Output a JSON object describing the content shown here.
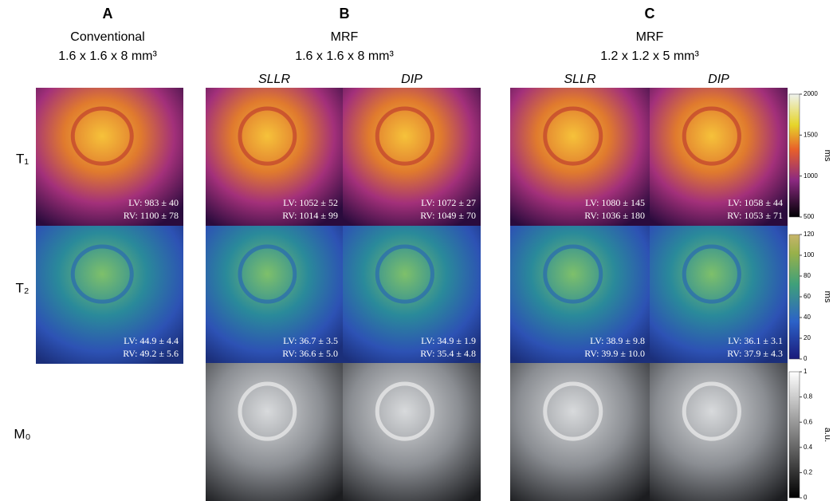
{
  "columns": [
    {
      "letter": "A",
      "title": "Conventional",
      "resolution": "1.6 x 1.6 x 8 mm³",
      "methods": [
        {
          "T1": {
            "lv": "LV: 983 ± 40",
            "rv": "RV: 1100 ± 78"
          },
          "T2": {
            "lv": "LV: 44.9 ± 4.4",
            "rv": "RV: 49.2 ± 5.6"
          }
        }
      ]
    },
    {
      "letter": "B",
      "title": "MRF",
      "resolution": "1.6 x 1.6 x 8 mm³",
      "methods": [
        {
          "name": "SLLR",
          "T1": {
            "lv": "LV: 1052 ± 52",
            "rv": "RV: 1014 ± 99"
          },
          "T2": {
            "lv": "LV: 36.7 ± 3.5",
            "rv": "RV: 36.6 ± 5.0"
          }
        },
        {
          "name": "DIP",
          "T1": {
            "lv": "LV: 1072 ± 27",
            "rv": "RV: 1049 ± 70"
          },
          "T2": {
            "lv": "LV: 34.9 ± 1.9",
            "rv": "RV: 35.4 ± 4.8"
          }
        }
      ]
    },
    {
      "letter": "C",
      "title": "MRF",
      "resolution": "1.2 x 1.2 x 5 mm³",
      "methods": [
        {
          "name": "SLLR",
          "T1": {
            "lv": "LV: 1080 ± 145",
            "rv": "RV: 1036 ± 180"
          },
          "T2": {
            "lv": "LV: 38.9 ± 9.8",
            "rv": "RV: 39.9 ± 10.0"
          }
        },
        {
          "name": "DIP",
          "T1": {
            "lv": "LV: 1058 ± 44",
            "rv": "RV: 1053 ± 71"
          },
          "T2": {
            "lv": "LV: 36.1 ± 3.1",
            "rv": "RV: 37.9 ± 4.3"
          }
        }
      ]
    }
  ],
  "rows": [
    "T₁",
    "T₂",
    "M₀"
  ],
  "colorbars": [
    {
      "ticks": [
        500,
        1000,
        1500,
        2000
      ],
      "unit": "ms"
    },
    {
      "ticks": [
        0,
        20,
        40,
        60,
        80,
        100,
        120
      ],
      "unit": "ms"
    },
    {
      "ticks": [
        0,
        0.2,
        0.4,
        0.6,
        0.8,
        1
      ],
      "unit": "a.u."
    }
  ]
}
